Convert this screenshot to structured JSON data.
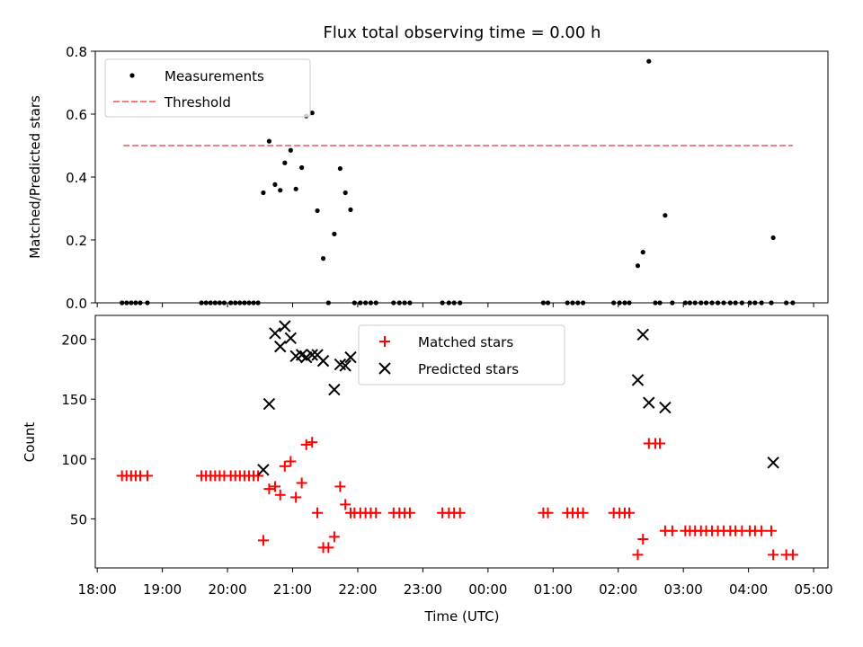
{
  "chart_data": [
    {
      "type": "scatter",
      "title": "Flux total observing time = 0.00 h",
      "ylabel": "Matched/Predicted stars",
      "xlabel": "",
      "xlim_hours": [
        17.97,
        29.22
      ],
      "ylim": [
        0,
        0.8
      ],
      "yticks": [
        "0.0",
        "0.2",
        "0.4",
        "0.6",
        "0.8"
      ],
      "legend_position": "upper-left",
      "series": [
        {
          "name": "Measurements",
          "marker": "dot",
          "color": "#000000",
          "x_hours": [
            18.38,
            18.45,
            18.52,
            18.59,
            18.66,
            18.77,
            19.6,
            19.67,
            19.74,
            19.81,
            19.88,
            19.95,
            20.05,
            20.12,
            20.19,
            20.26,
            20.33,
            20.4,
            20.47,
            20.55,
            20.64,
            20.73,
            20.81,
            20.88,
            20.97,
            21.05,
            21.14,
            21.21,
            21.3,
            21.38,
            21.47,
            21.55,
            21.64,
            21.73,
            21.81,
            21.89,
            21.95,
            22.04,
            22.12,
            22.2,
            22.28,
            22.55,
            22.64,
            22.72,
            22.8,
            23.3,
            23.4,
            23.48,
            23.57,
            24.85,
            24.92,
            25.22,
            25.3,
            25.38,
            25.46,
            25.93,
            26.02,
            26.1,
            26.17,
            26.3,
            26.38,
            26.47,
            26.57,
            26.64,
            26.72,
            26.83,
            27.03,
            27.1,
            27.18,
            27.27,
            27.35,
            27.44,
            27.53,
            27.62,
            27.72,
            27.8,
            27.9,
            28.02,
            28.1,
            28.2,
            28.35,
            28.38,
            28.58,
            28.68
          ],
          "y": [
            0,
            0,
            0,
            0,
            0,
            0,
            0,
            0,
            0,
            0,
            0,
            0,
            0,
            0,
            0,
            0,
            0,
            0,
            0,
            0.35,
            0.514,
            0.376,
            0.358,
            0.445,
            0.485,
            0.362,
            0.43,
            0.594,
            0.604,
            0.293,
            0.141,
            0,
            0.219,
            0.427,
            0.35,
            0.296,
            0,
            0,
            0,
            0,
            0,
            0,
            0,
            0,
            0,
            0,
            0,
            0,
            0,
            0,
            0,
            0,
            0,
            0,
            0,
            0,
            0,
            0,
            0,
            0.118,
            0.161,
            0.768,
            0,
            0,
            0.278,
            0,
            0,
            0,
            0,
            0,
            0,
            0,
            0,
            0,
            0,
            0,
            0,
            0,
            0,
            0,
            0,
            0.207,
            0,
            0
          ]
        },
        {
          "name": "Threshold",
          "marker": "dashed-line",
          "color": "#f08080",
          "x_hours": [
            18.4,
            28.68
          ],
          "y": [
            0.5,
            0.5
          ]
        }
      ]
    },
    {
      "type": "scatter",
      "xlabel": "Time (UTC)",
      "ylabel": "Count",
      "xlim_hours": [
        17.97,
        29.22
      ],
      "ylim": [
        9,
        220
      ],
      "xticks": [
        "18:00",
        "19:00",
        "20:00",
        "21:00",
        "22:00",
        "23:00",
        "00:00",
        "01:00",
        "02:00",
        "03:00",
        "04:00",
        "05:00"
      ],
      "yticks": [
        "50",
        "100",
        "150",
        "200"
      ],
      "legend_position": "upper-center",
      "series": [
        {
          "name": "Matched stars",
          "marker": "plus",
          "color": "#ff0000",
          "x_hours": [
            18.38,
            18.45,
            18.52,
            18.59,
            18.66,
            18.77,
            19.6,
            19.67,
            19.74,
            19.81,
            19.88,
            19.95,
            20.05,
            20.12,
            20.19,
            20.26,
            20.33,
            20.4,
            20.47,
            20.55,
            20.64,
            20.73,
            20.81,
            20.88,
            20.97,
            21.05,
            21.14,
            21.21,
            21.3,
            21.38,
            21.47,
            21.55,
            21.64,
            21.73,
            21.81,
            21.89,
            21.95,
            22.04,
            22.12,
            22.2,
            22.28,
            22.55,
            22.64,
            22.72,
            22.8,
            23.3,
            23.4,
            23.48,
            23.57,
            24.85,
            24.92,
            25.22,
            25.3,
            25.38,
            25.46,
            25.93,
            26.02,
            26.1,
            26.17,
            26.3,
            26.38,
            26.47,
            26.57,
            26.64,
            26.72,
            26.83,
            27.03,
            27.1,
            27.18,
            27.27,
            27.35,
            27.44,
            27.53,
            27.62,
            27.72,
            27.8,
            27.9,
            28.02,
            28.1,
            28.2,
            28.35,
            28.38,
            28.58,
            28.68
          ],
          "y": [
            86,
            86,
            86,
            86,
            86,
            86,
            86,
            86,
            86,
            86,
            86,
            86,
            86,
            86,
            86,
            86,
            86,
            86,
            86,
            32,
            75,
            77,
            70,
            94,
            98,
            68,
            80,
            112,
            114,
            55,
            26,
            26,
            35,
            77,
            62,
            55,
            55,
            55,
            55,
            55,
            55,
            55,
            55,
            55,
            55,
            55,
            55,
            55,
            55,
            55,
            55,
            55,
            55,
            55,
            55,
            55,
            55,
            55,
            55,
            20,
            33,
            113,
            113,
            113,
            40,
            40,
            40,
            40,
            40,
            40,
            40,
            40,
            40,
            40,
            40,
            40,
            40,
            40,
            40,
            40,
            40,
            20,
            20,
            20
          ]
        },
        {
          "name": "Predicted stars",
          "marker": "x",
          "color": "#000000",
          "x_hours": [
            20.55,
            20.64,
            20.73,
            20.81,
            20.88,
            20.97,
            21.05,
            21.14,
            21.21,
            21.3,
            21.38,
            21.47,
            21.64,
            21.73,
            21.81,
            21.89,
            26.3,
            26.38,
            26.47,
            26.72,
            28.38
          ],
          "y": [
            91,
            146,
            205,
            194,
            211,
            201,
            186,
            187,
            185,
            187,
            187,
            182,
            158,
            179,
            178,
            185,
            166,
            204,
            147,
            143,
            97
          ]
        }
      ]
    }
  ]
}
